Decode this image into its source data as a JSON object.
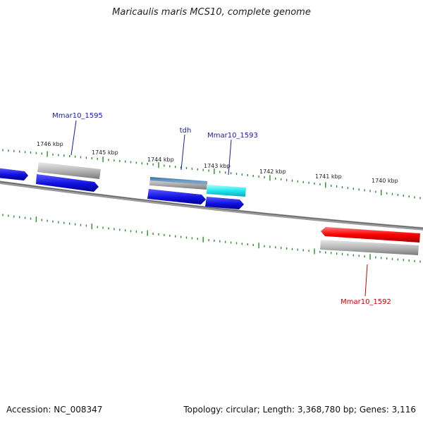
{
  "title": "Maricaulis maris MCS10, complete genome",
  "footer": {
    "accession": "Accession: NC_008347",
    "summary": "Topology: circular; Length: 3,368,780 bp; Genes: 3,116"
  },
  "colors": {
    "cds_forward": "#1010e0",
    "cds_reverse": "#ff0000",
    "highlight_cds": "#22e6ee",
    "tdh_band": "#4f86b6",
    "gene": "#b7b7b7",
    "ticks": "#2e8b2e",
    "backbone": "#808080",
    "label_blue": "#1a1aa8",
    "label_red": "#cc0000"
  },
  "scale": {
    "tick_unit": "kbp",
    "labels": [
      "1746 kbp",
      "1745 kbp",
      "1744 kbp",
      "1743 kbp",
      "1742 kbp",
      "1741 kbp",
      "1740 kbp"
    ]
  },
  "genes": [
    {
      "name": "Mmar10_1595",
      "strand": "forward"
    },
    {
      "name": "tdh",
      "strand": "forward"
    },
    {
      "name": "Mmar10_1593",
      "strand": "forward"
    },
    {
      "name": "Mmar10_1592",
      "strand": "reverse"
    }
  ]
}
